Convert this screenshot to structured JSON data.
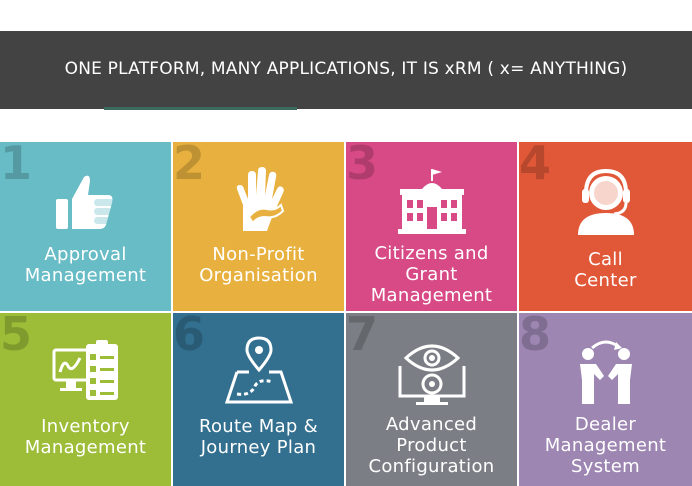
{
  "banner": {
    "title": "ONE PLATFORM, MANY APPLICATIONS, IT IS xRM ( x= ANYTHING)"
  },
  "tiles": [
    {
      "number": "1",
      "line1": "Approval",
      "line2": "Management",
      "line3": "",
      "icon": "thumbs-up-icon",
      "color": "#68bcc6"
    },
    {
      "number": "2",
      "line1": "Non-Profit",
      "line2": "Organisation",
      "line3": "",
      "icon": "helping-hands-icon",
      "color": "#e8b13f"
    },
    {
      "number": "3",
      "line1": "Citizens and",
      "line2": "Grant",
      "line3": "Management",
      "icon": "government-building-icon",
      "color": "#d74a86"
    },
    {
      "number": "4",
      "line1": "Call",
      "line2": "Center",
      "line3": "",
      "icon": "headset-agent-icon",
      "color": "#e15838"
    },
    {
      "number": "5",
      "line1": "Inventory",
      "line2": "Management",
      "line3": "",
      "icon": "inventory-checklist-icon",
      "color": "#9dbd38"
    },
    {
      "number": "6",
      "line1": "Route Map &",
      "line2": "Journey Plan",
      "line3": "",
      "icon": "route-map-icon",
      "color": "#336f8e"
    },
    {
      "number": "7",
      "line1": "Advanced",
      "line2": "Product",
      "line3": "Configuration",
      "icon": "configuration-monitor-icon",
      "color": "#7b7f85"
    },
    {
      "number": "8",
      "line1": "Dealer",
      "line2": "Management",
      "line3": "System",
      "icon": "dealer-handshake-icon",
      "color": "#9d86b2"
    }
  ]
}
